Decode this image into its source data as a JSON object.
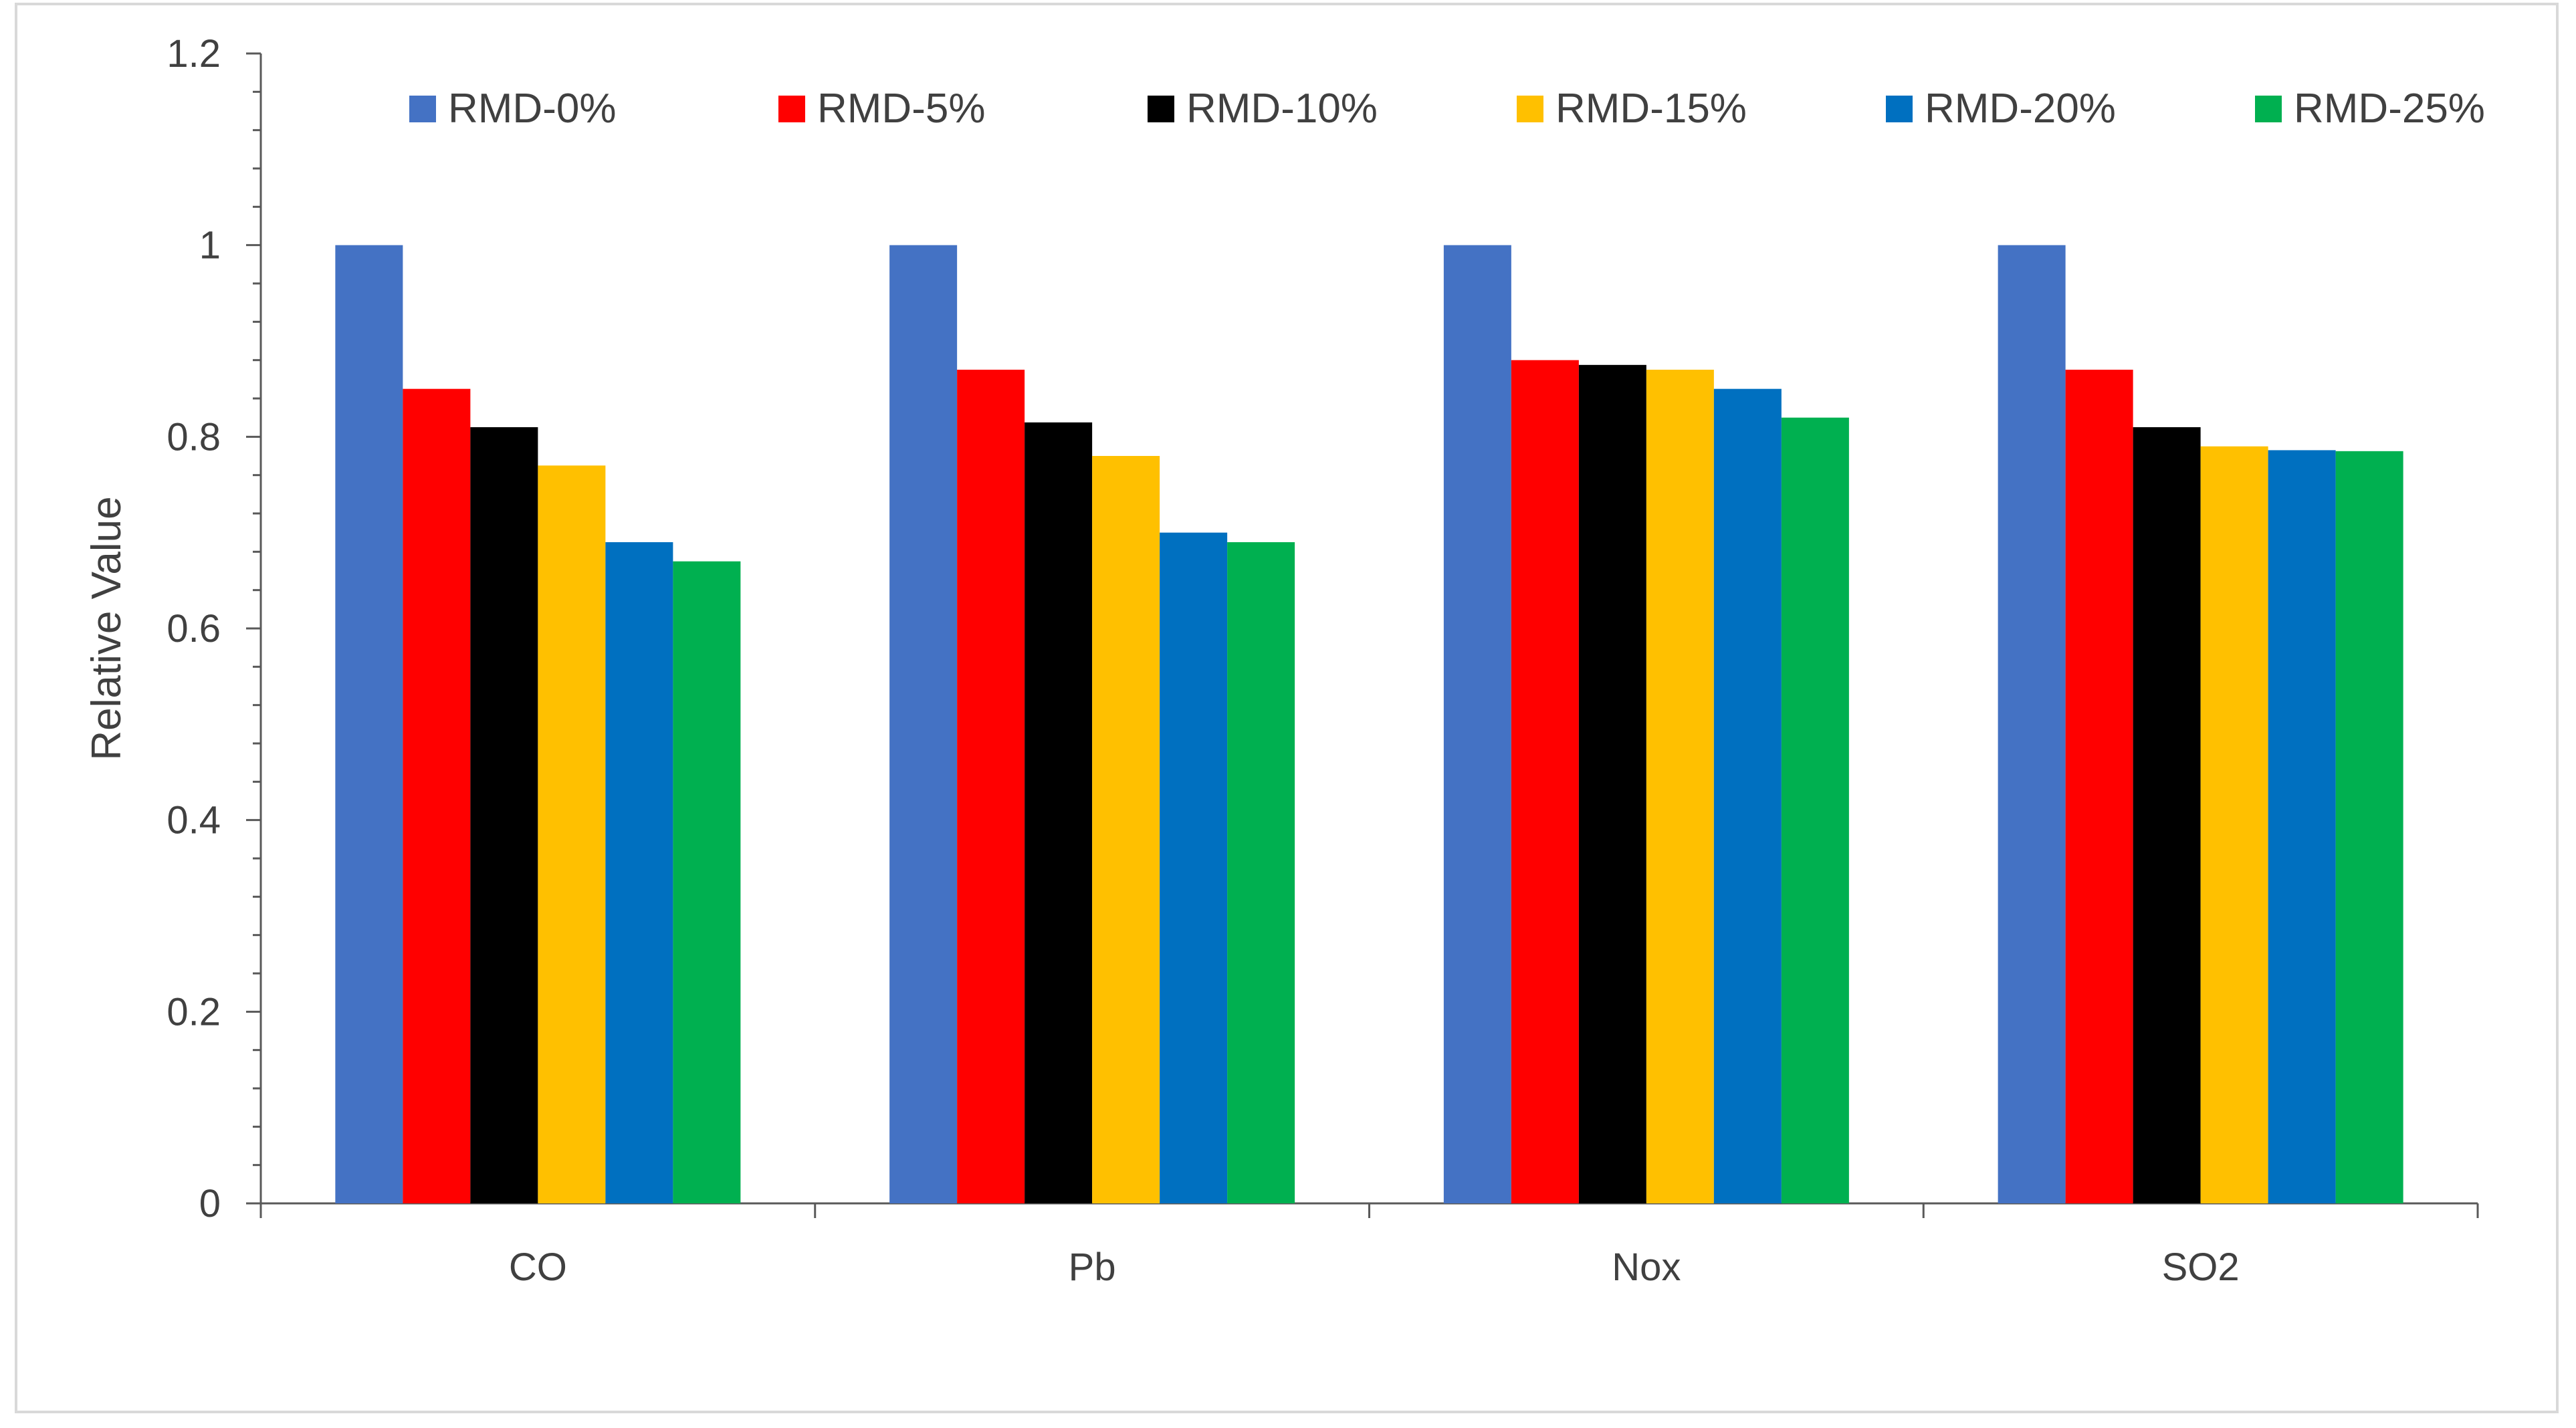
{
  "chart_data": {
    "type": "bar",
    "title": "",
    "xlabel": "",
    "ylabel": "Relative Value",
    "ylim": [
      0,
      1.2
    ],
    "yticks": [
      "0",
      "0.2",
      "0.4",
      "0.6",
      "0.8",
      "1",
      "1.2"
    ],
    "categories": [
      "CO",
      "Pb",
      "Nox",
      "SO2"
    ],
    "legend_position": "top",
    "grid": false,
    "series": [
      {
        "name": "RMD-0%",
        "color": "#4472C4",
        "values": [
          1.0,
          1.0,
          1.0,
          1.0
        ]
      },
      {
        "name": "RMD-5%",
        "color": "#FF0000",
        "values": [
          0.85,
          0.87,
          0.88,
          0.87
        ]
      },
      {
        "name": "RMD-10%",
        "color": "#000000",
        "values": [
          0.81,
          0.815,
          0.875,
          0.81
        ]
      },
      {
        "name": "RMD-15%",
        "color": "#FFC000",
        "values": [
          0.77,
          0.78,
          0.87,
          0.79
        ]
      },
      {
        "name": "RMD-20%",
        "color": "#0070C0",
        "values": [
          0.69,
          0.7,
          0.85,
          0.786
        ]
      },
      {
        "name": "RMD-25%",
        "color": "#00B050",
        "values": [
          0.67,
          0.69,
          0.82,
          0.785
        ]
      }
    ]
  }
}
